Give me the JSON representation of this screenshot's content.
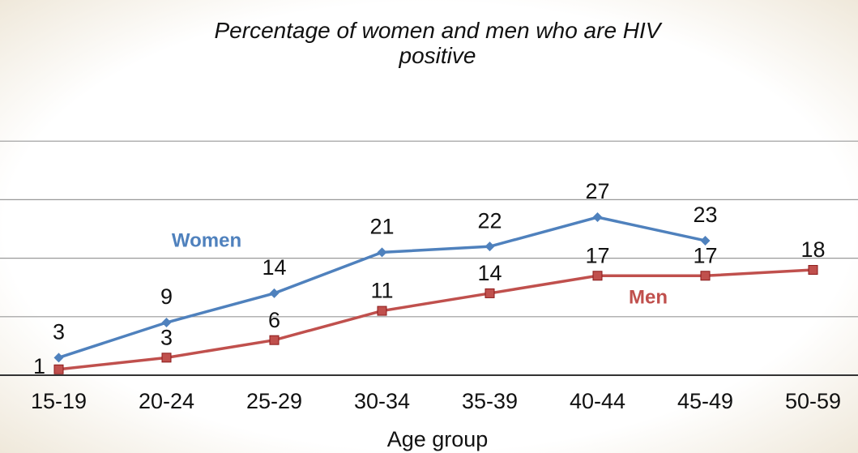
{
  "chart_data": {
    "type": "line",
    "title": "Percentage of women and men who are HIV positive",
    "x_label": "Age group",
    "categories": [
      "15-19",
      "20-24",
      "25-29",
      "30-34",
      "35-39",
      "40-44",
      "45-49",
      "50-59"
    ],
    "series": [
      {
        "name": "Women",
        "color": "#4f81bd",
        "marker": "diamond",
        "values": [
          3,
          9,
          14,
          21,
          22,
          27,
          23,
          null
        ]
      },
      {
        "name": "Men",
        "color": "#c0504d",
        "marker": "square",
        "values": [
          1,
          3,
          6,
          11,
          14,
          17,
          17,
          18
        ]
      }
    ],
    "ylim": [
      0,
      50
    ],
    "yticks": [
      0,
      10,
      20,
      30,
      40
    ],
    "grid": true
  }
}
